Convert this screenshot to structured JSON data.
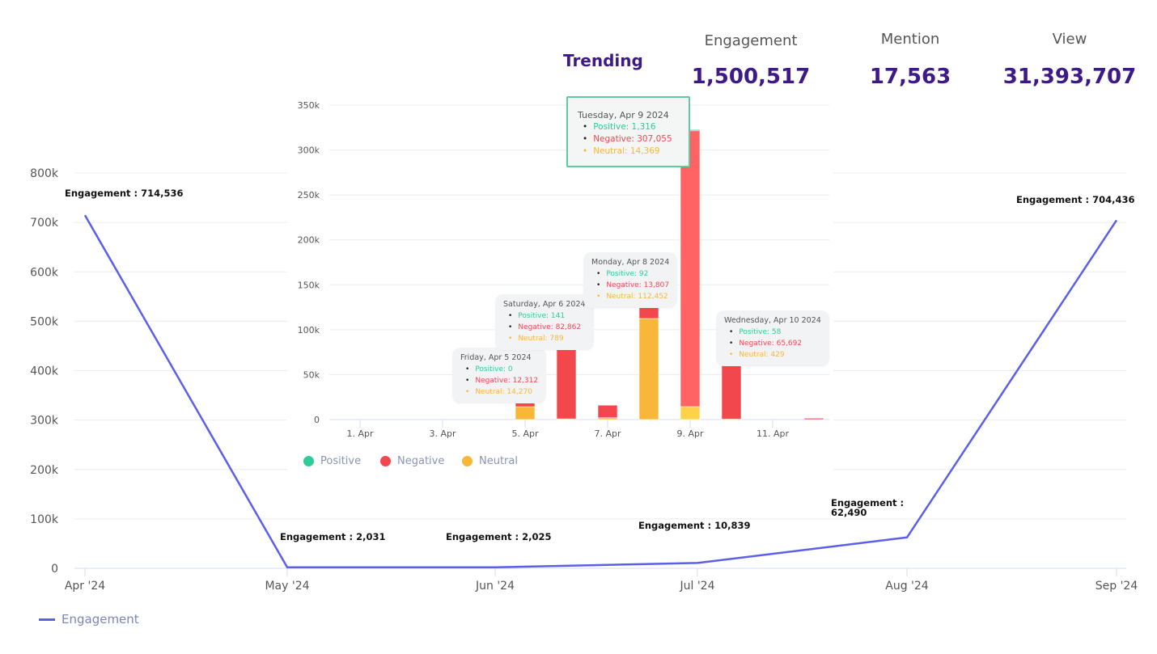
{
  "header": {
    "trending_label": "Trending",
    "stats": [
      {
        "label": "Engagement",
        "value": "1,500,517"
      },
      {
        "label": "Mention",
        "value": "17,563"
      },
      {
        "label": "View",
        "value": "31,393,707"
      }
    ]
  },
  "colors": {
    "line": "#5b60e8",
    "positive": "#2ecc97",
    "negative": "#f3474e",
    "neutral": "#f8b739",
    "heading": "#3d1a87"
  },
  "chart_data": [
    {
      "type": "line",
      "title": "Engagement",
      "categories": [
        "Apr '24",
        "May '24",
        "Jun '24",
        "Jul '24",
        "Aug '24",
        "Sep '24"
      ],
      "series": [
        {
          "name": "Engagement",
          "values": [
            714536,
            2031,
            2025,
            10839,
            62490,
            704436
          ]
        }
      ],
      "data_labels": [
        "Engagement : 714,536",
        "Engagement : 2,031",
        "Engagement : 2,025",
        "Engagement : 10,839",
        "Engagement : 62,490",
        "Engagement : 704,436"
      ],
      "y_ticks": [
        "0",
        "100k",
        "200k",
        "300k",
        "400k",
        "500k",
        "600k",
        "700k",
        "800k"
      ],
      "ylim": [
        0,
        800000
      ],
      "grid": true,
      "legend": {
        "position": "bottom-left",
        "entries": [
          "Engagement"
        ]
      }
    },
    {
      "type": "bar",
      "stacked": true,
      "title": "Trending",
      "x_ticks": [
        "1. Apr",
        "3. Apr",
        "5. Apr",
        "7. Apr",
        "9. Apr",
        "11. Apr"
      ],
      "categories": [
        "Apr 5",
        "Apr 6",
        "Apr 7",
        "Apr 8",
        "Apr 9",
        "Apr 10",
        "Apr 12"
      ],
      "series": [
        {
          "name": "Positive",
          "values": [
            0,
            141,
            0,
            92,
            1316,
            58,
            0
          ]
        },
        {
          "name": "Negative",
          "values": [
            12312,
            82862,
            14000,
            13807,
            307055,
            65692,
            1500
          ]
        },
        {
          "name": "Neutral",
          "values": [
            14270,
            789,
            2000,
            112452,
            14369,
            429,
            0
          ]
        }
      ],
      "y_ticks": [
        "0",
        "50k",
        "100k",
        "150k",
        "200k",
        "250k",
        "300k",
        "350k"
      ],
      "ylim": [
        0,
        350000
      ],
      "grid": true,
      "legend": {
        "position": "bottom-left",
        "entries": [
          "Positive",
          "Negative",
          "Neutral"
        ]
      },
      "tooltips": [
        {
          "title": "Friday, Apr 5 2024",
          "positive": "Positive: 0",
          "negative": "Negative: 12,312",
          "neutral": "Neutral: 14,270"
        },
        {
          "title": "Saturday, Apr 6 2024",
          "positive": "Positive: 141",
          "negative": "Negative: 82,862",
          "neutral": "Neutral: 789"
        },
        {
          "title": "Monday, Apr 8 2024",
          "positive": "Positive: 92",
          "negative": "Negative: 13,807",
          "neutral": "Neutral: 112,452"
        },
        {
          "title": "Tuesday, Apr 9 2024",
          "positive": "Positive: 1,316",
          "negative": "Negative: 307,055",
          "neutral": "Neutral: 14,369"
        },
        {
          "title": "Wednesday, Apr 10 2024",
          "positive": "Positive: 58",
          "negative": "Negative: 65,692",
          "neutral": "Neutral: 429"
        }
      ]
    }
  ]
}
